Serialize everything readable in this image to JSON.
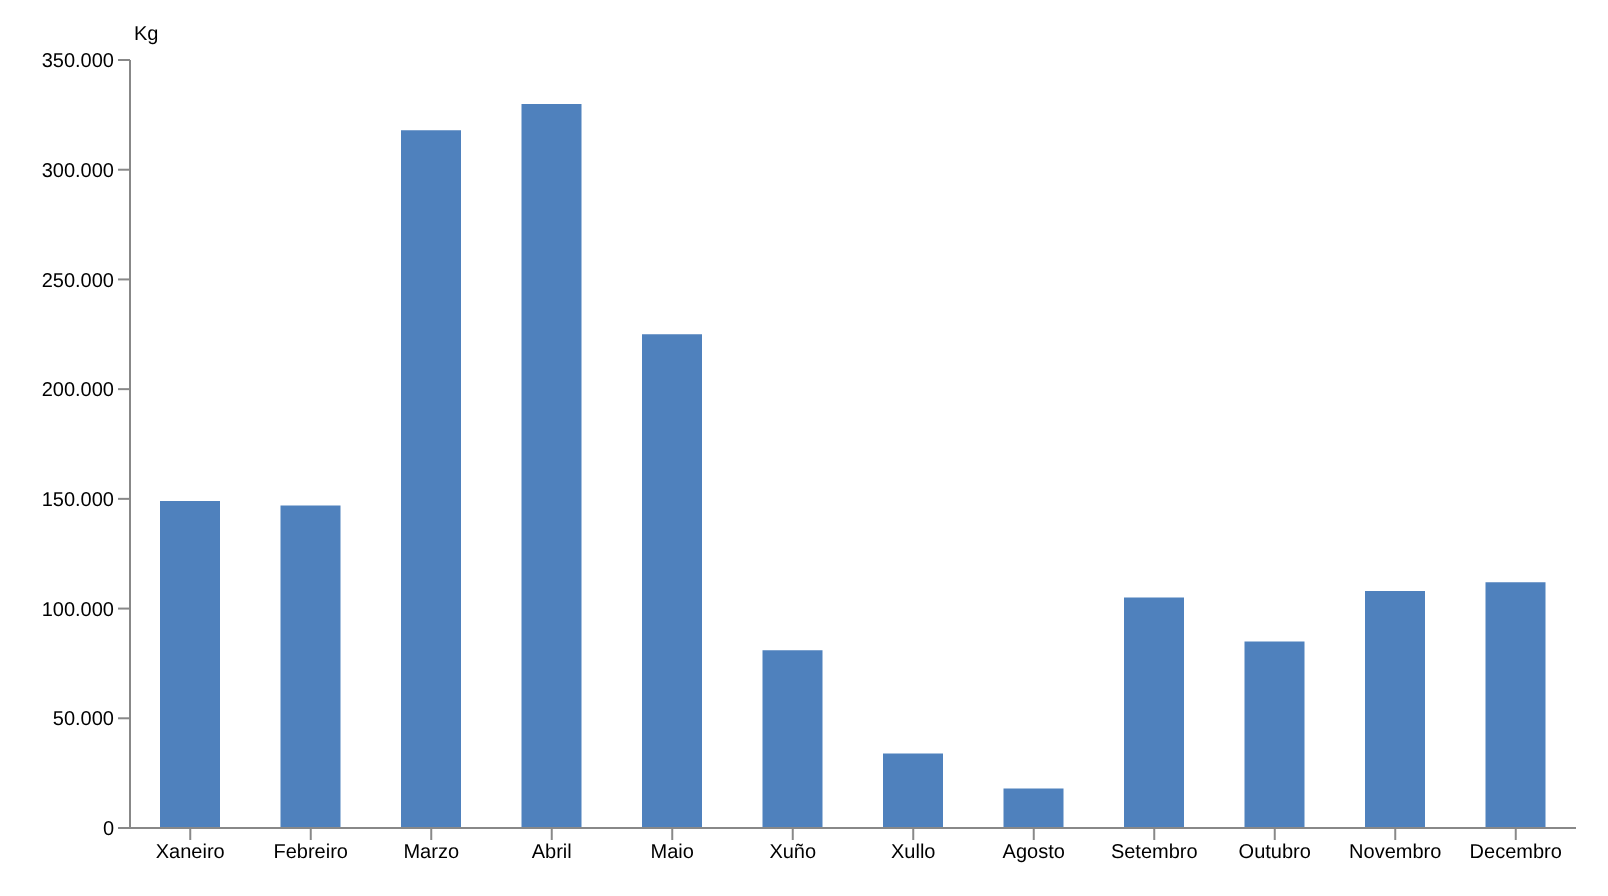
{
  "chart_data": {
    "type": "bar",
    "ylabel": "Kg",
    "categories": [
      "Xaneiro",
      "Febreiro",
      "Marzo",
      "Abril",
      "Maio",
      "Xuño",
      "Xullo",
      "Agosto",
      "Setembro",
      "Outubro",
      "Novembro",
      "Decembro"
    ],
    "values": [
      149000,
      147000,
      318000,
      330000,
      225000,
      81000,
      34000,
      18000,
      105000,
      85000,
      108000,
      112000
    ],
    "color": "#4f81bd",
    "ylim": [
      0,
      350000
    ],
    "yticks": [
      {
        "value": 0,
        "label": "0"
      },
      {
        "value": 50000,
        "label": "50.000"
      },
      {
        "value": 100000,
        "label": "100.000"
      },
      {
        "value": 150000,
        "label": "150.000"
      },
      {
        "value": 200000,
        "label": "200.000"
      },
      {
        "value": 250000,
        "label": "250.000"
      },
      {
        "value": 300000,
        "label": "300.000"
      },
      {
        "value": 350000,
        "label": "350.000"
      }
    ],
    "grid": false
  }
}
